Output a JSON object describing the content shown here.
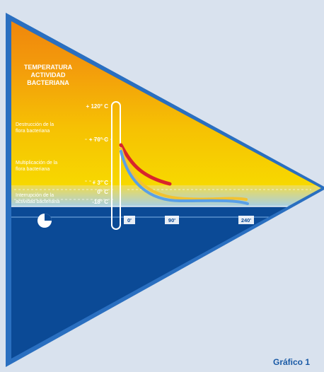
{
  "header": {
    "title_line1": "TEMPERATURA",
    "title_line2": "ACTIVIDAD",
    "title_line3": "BACTERIANA"
  },
  "zones": [
    {
      "line1": "Destrucción de la",
      "line2": "flora bacteriana"
    },
    {
      "line1": "Multiplicación de la",
      "line2": "flora bacteriana"
    },
    {
      "line1": "Interrupción de la",
      "line2": "actividad bacteriana"
    }
  ],
  "temperatures": [
    "+ 120° C",
    "+ 70° C",
    "+ 3° C",
    "0° C",
    "-18° C"
  ],
  "time_labels": [
    "0'",
    "90'",
    "240'"
  ],
  "caption": "Gráfico 1",
  "colors": {
    "background": "#d9e2ee",
    "triangle_border": "#2a6fc0",
    "cold_zone": "#0b4a96",
    "hot_top": "#f08a0a",
    "warm_bottom": "#f6d200",
    "curve_red": "#d8252c",
    "curve_blue": "#5aa0e6",
    "caption": "#1a5aa6"
  },
  "icons": {
    "clock": "clock-icon"
  }
}
